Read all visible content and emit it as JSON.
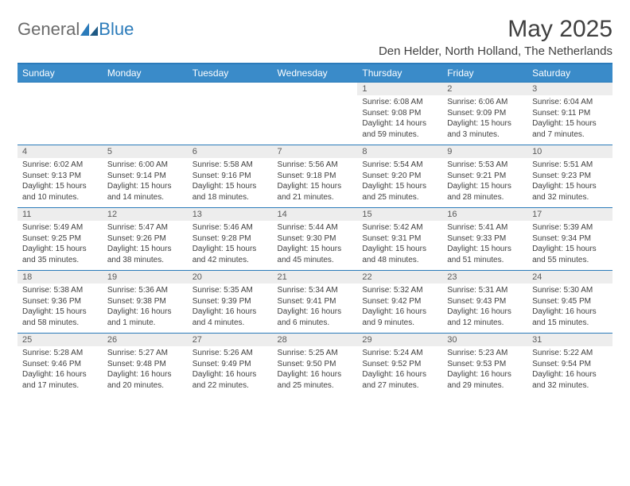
{
  "brand": {
    "part1": "General",
    "part2": "Blue"
  },
  "title": "May 2025",
  "location": "Den Helder, North Holland, The Netherlands",
  "colors": {
    "header_bg": "#3a8bc9",
    "border": "#2b7bba",
    "daynum_bg": "#ededed",
    "text": "#404040"
  },
  "day_names": [
    "Sunday",
    "Monday",
    "Tuesday",
    "Wednesday",
    "Thursday",
    "Friday",
    "Saturday"
  ],
  "weeks": [
    [
      null,
      null,
      null,
      null,
      {
        "n": "1",
        "sr": "6:08 AM",
        "ss": "9:08 PM",
        "dl": "14 hours and 59 minutes."
      },
      {
        "n": "2",
        "sr": "6:06 AM",
        "ss": "9:09 PM",
        "dl": "15 hours and 3 minutes."
      },
      {
        "n": "3",
        "sr": "6:04 AM",
        "ss": "9:11 PM",
        "dl": "15 hours and 7 minutes."
      }
    ],
    [
      {
        "n": "4",
        "sr": "6:02 AM",
        "ss": "9:13 PM",
        "dl": "15 hours and 10 minutes."
      },
      {
        "n": "5",
        "sr": "6:00 AM",
        "ss": "9:14 PM",
        "dl": "15 hours and 14 minutes."
      },
      {
        "n": "6",
        "sr": "5:58 AM",
        "ss": "9:16 PM",
        "dl": "15 hours and 18 minutes."
      },
      {
        "n": "7",
        "sr": "5:56 AM",
        "ss": "9:18 PM",
        "dl": "15 hours and 21 minutes."
      },
      {
        "n": "8",
        "sr": "5:54 AM",
        "ss": "9:20 PM",
        "dl": "15 hours and 25 minutes."
      },
      {
        "n": "9",
        "sr": "5:53 AM",
        "ss": "9:21 PM",
        "dl": "15 hours and 28 minutes."
      },
      {
        "n": "10",
        "sr": "5:51 AM",
        "ss": "9:23 PM",
        "dl": "15 hours and 32 minutes."
      }
    ],
    [
      {
        "n": "11",
        "sr": "5:49 AM",
        "ss": "9:25 PM",
        "dl": "15 hours and 35 minutes."
      },
      {
        "n": "12",
        "sr": "5:47 AM",
        "ss": "9:26 PM",
        "dl": "15 hours and 38 minutes."
      },
      {
        "n": "13",
        "sr": "5:46 AM",
        "ss": "9:28 PM",
        "dl": "15 hours and 42 minutes."
      },
      {
        "n": "14",
        "sr": "5:44 AM",
        "ss": "9:30 PM",
        "dl": "15 hours and 45 minutes."
      },
      {
        "n": "15",
        "sr": "5:42 AM",
        "ss": "9:31 PM",
        "dl": "15 hours and 48 minutes."
      },
      {
        "n": "16",
        "sr": "5:41 AM",
        "ss": "9:33 PM",
        "dl": "15 hours and 51 minutes."
      },
      {
        "n": "17",
        "sr": "5:39 AM",
        "ss": "9:34 PM",
        "dl": "15 hours and 55 minutes."
      }
    ],
    [
      {
        "n": "18",
        "sr": "5:38 AM",
        "ss": "9:36 PM",
        "dl": "15 hours and 58 minutes."
      },
      {
        "n": "19",
        "sr": "5:36 AM",
        "ss": "9:38 PM",
        "dl": "16 hours and 1 minute."
      },
      {
        "n": "20",
        "sr": "5:35 AM",
        "ss": "9:39 PM",
        "dl": "16 hours and 4 minutes."
      },
      {
        "n": "21",
        "sr": "5:34 AM",
        "ss": "9:41 PM",
        "dl": "16 hours and 6 minutes."
      },
      {
        "n": "22",
        "sr": "5:32 AM",
        "ss": "9:42 PM",
        "dl": "16 hours and 9 minutes."
      },
      {
        "n": "23",
        "sr": "5:31 AM",
        "ss": "9:43 PM",
        "dl": "16 hours and 12 minutes."
      },
      {
        "n": "24",
        "sr": "5:30 AM",
        "ss": "9:45 PM",
        "dl": "16 hours and 15 minutes."
      }
    ],
    [
      {
        "n": "25",
        "sr": "5:28 AM",
        "ss": "9:46 PM",
        "dl": "16 hours and 17 minutes."
      },
      {
        "n": "26",
        "sr": "5:27 AM",
        "ss": "9:48 PM",
        "dl": "16 hours and 20 minutes."
      },
      {
        "n": "27",
        "sr": "5:26 AM",
        "ss": "9:49 PM",
        "dl": "16 hours and 22 minutes."
      },
      {
        "n": "28",
        "sr": "5:25 AM",
        "ss": "9:50 PM",
        "dl": "16 hours and 25 minutes."
      },
      {
        "n": "29",
        "sr": "5:24 AM",
        "ss": "9:52 PM",
        "dl": "16 hours and 27 minutes."
      },
      {
        "n": "30",
        "sr": "5:23 AM",
        "ss": "9:53 PM",
        "dl": "16 hours and 29 minutes."
      },
      {
        "n": "31",
        "sr": "5:22 AM",
        "ss": "9:54 PM",
        "dl": "16 hours and 32 minutes."
      }
    ]
  ],
  "labels": {
    "sunrise": "Sunrise: ",
    "sunset": "Sunset: ",
    "daylight": "Daylight: "
  }
}
